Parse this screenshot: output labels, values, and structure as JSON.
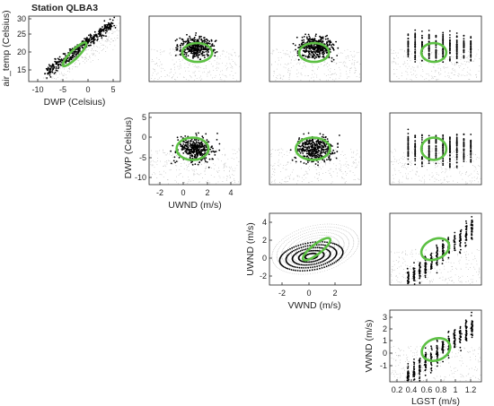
{
  "figure": {
    "title": "Station QLBA3",
    "point_color": "#000000",
    "background_point_color": "#bfbfbf",
    "ellipse_color": "#5cc043"
  },
  "chart_data": [
    {
      "type": "scatter",
      "id": "air_temp_vs_dwp",
      "title": "Station QLBA3",
      "xlabel": "DWP (Celsius)",
      "ylabel": "air_temp (Celsius)",
      "xlim": [
        -12,
        6
      ],
      "ylim": [
        14,
        32
      ],
      "xticks": [
        "-10",
        "-5",
        "0",
        "5"
      ],
      "xtick_values": [
        -10,
        -5,
        0,
        5
      ],
      "yticks": [
        "15",
        "20",
        "25",
        "30"
      ],
      "ytick_values": [
        15,
        20,
        25,
        30
      ],
      "ellipse": {
        "cx": -3,
        "cy": 21.5,
        "rx": 3.2,
        "ry": 1.1,
        "angle_deg": 45
      },
      "spread": {
        "x": [
          -8.5,
          4.5
        ],
        "y": [
          16.5,
          30
        ],
        "shape": "diagonal"
      }
    },
    {
      "type": "scatter",
      "id": "air_temp_vs_uwnd",
      "xlim": [
        -3,
        5
      ],
      "ylim": [
        14,
        32
      ],
      "ellipse": {
        "cx": 1.2,
        "cy": 22,
        "rx": 1.3,
        "ry": 2.6,
        "angle_deg": 0
      },
      "spread": {
        "x": [
          -2.3,
          4.5
        ],
        "y": [
          17,
          30
        ],
        "shape": "cloud"
      }
    },
    {
      "type": "scatter",
      "id": "air_temp_vs_vwnd",
      "xlim": [
        -3,
        5
      ],
      "ylim": [
        14,
        32
      ],
      "ellipse": {
        "cx": 0.9,
        "cy": 22,
        "rx": 1.3,
        "ry": 2.6,
        "angle_deg": 0
      },
      "spread": {
        "x": [
          -2.3,
          4.5
        ],
        "y": [
          17,
          30
        ],
        "shape": "cloud"
      }
    },
    {
      "type": "scatter",
      "id": "air_temp_vs_lgst",
      "xlim": [
        0.1,
        1.35
      ],
      "ylim": [
        14,
        32
      ],
      "ellipse": {
        "cx": 0.7,
        "cy": 22,
        "rx": 0.17,
        "ry": 2.6,
        "angle_deg": 0
      },
      "spread": {
        "x": [
          0.35,
          1.3
        ],
        "y": [
          17,
          30
        ],
        "shape": "columns"
      }
    },
    {
      "type": "scatter",
      "id": "dwp_vs_uwnd",
      "xlabel": "UWND (m/s)",
      "ylabel": "DWP (Celsius)",
      "xlim": [
        -3,
        5
      ],
      "ylim": [
        -12,
        6
      ],
      "xticks": [
        "-2",
        "0",
        "2",
        "4"
      ],
      "xtick_values": [
        -2,
        0,
        2,
        4
      ],
      "yticks": [
        "5",
        "0",
        "-5",
        "-10"
      ],
      "ytick_values": [
        5,
        0,
        -5,
        -10
      ],
      "ellipse": {
        "cx": 0.8,
        "cy": -3,
        "rx": 1.4,
        "ry": 2.8,
        "angle_deg": 0
      },
      "spread": {
        "x": [
          -2.5,
          4.5
        ],
        "y": [
          -10,
          4
        ],
        "shape": "cloud"
      }
    },
    {
      "type": "scatter",
      "id": "dwp_vs_vwnd",
      "xlim": [
        -3,
        5
      ],
      "ylim": [
        -12,
        6
      ],
      "ellipse": {
        "cx": 0.8,
        "cy": -3,
        "rx": 1.5,
        "ry": 2.8,
        "angle_deg": 0
      },
      "spread": {
        "x": [
          -2.5,
          4.5
        ],
        "y": [
          -10,
          4
        ],
        "shape": "cloud"
      }
    },
    {
      "type": "scatter",
      "id": "dwp_vs_lgst",
      "xlim": [
        0.1,
        1.35
      ],
      "ylim": [
        -12,
        6
      ],
      "ellipse": {
        "cx": 0.7,
        "cy": -3,
        "rx": 0.17,
        "ry": 2.8,
        "angle_deg": 0
      },
      "spread": {
        "x": [
          0.35,
          1.3
        ],
        "y": [
          -10,
          4
        ],
        "shape": "columns"
      }
    },
    {
      "type": "scatter",
      "id": "uwnd_vs_vwnd",
      "xlabel": "VWND (m/s)",
      "ylabel": "UWND (m/s)",
      "xlim": [
        -3,
        4
      ],
      "ylim": [
        -3,
        5
      ],
      "xticks": [
        "-2",
        "0",
        "2"
      ],
      "xtick_values": [
        -2,
        0,
        2
      ],
      "yticks": [
        "4",
        "2",
        "0",
        "-2"
      ],
      "ytick_values": [
        4,
        2,
        0,
        -2
      ],
      "ellipse": {
        "cx": 0.6,
        "cy": 1.0,
        "rx": 1.3,
        "ry": 0.55,
        "angle_deg": 38
      },
      "spread": {
        "x": [
          -2.5,
          3.5
        ],
        "y": [
          -2.5,
          4.5
        ],
        "shape": "rings"
      }
    },
    {
      "type": "scatter",
      "id": "uwnd_vs_lgst",
      "xlim": [
        0.1,
        1.35
      ],
      "ylim": [
        -3,
        5
      ],
      "ellipse": {
        "cx": 0.72,
        "cy": 1.0,
        "rx": 0.2,
        "ry": 1.1,
        "angle_deg": 25
      },
      "spread": {
        "x": [
          0.35,
          1.3
        ],
        "y": [
          -2.5,
          4.5
        ],
        "shape": "rising"
      }
    },
    {
      "type": "scatter",
      "id": "vwnd_vs_lgst",
      "xlabel": "LGST (m/s)",
      "ylabel": "VWND (m/s)",
      "xlim": [
        0.1,
        1.35
      ],
      "ylim": [
        -2,
        4
      ],
      "xticks": [
        "0.2",
        "0.4",
        "0.6",
        "0.8",
        "1",
        "1.2"
      ],
      "xtick_values": [
        0.2,
        0.4,
        0.6,
        0.8,
        1,
        1.2
      ],
      "yticks": [
        "3",
        "2",
        "1",
        "0",
        "-1"
      ],
      "ytick_values": [
        3,
        2,
        1,
        0,
        -1
      ],
      "ellipse": {
        "cx": 0.73,
        "cy": 0.7,
        "rx": 0.2,
        "ry": 0.9,
        "angle_deg": 22
      },
      "spread": {
        "x": [
          0.35,
          1.3
        ],
        "y": [
          -1.5,
          3.5
        ],
        "shape": "rising"
      }
    }
  ]
}
